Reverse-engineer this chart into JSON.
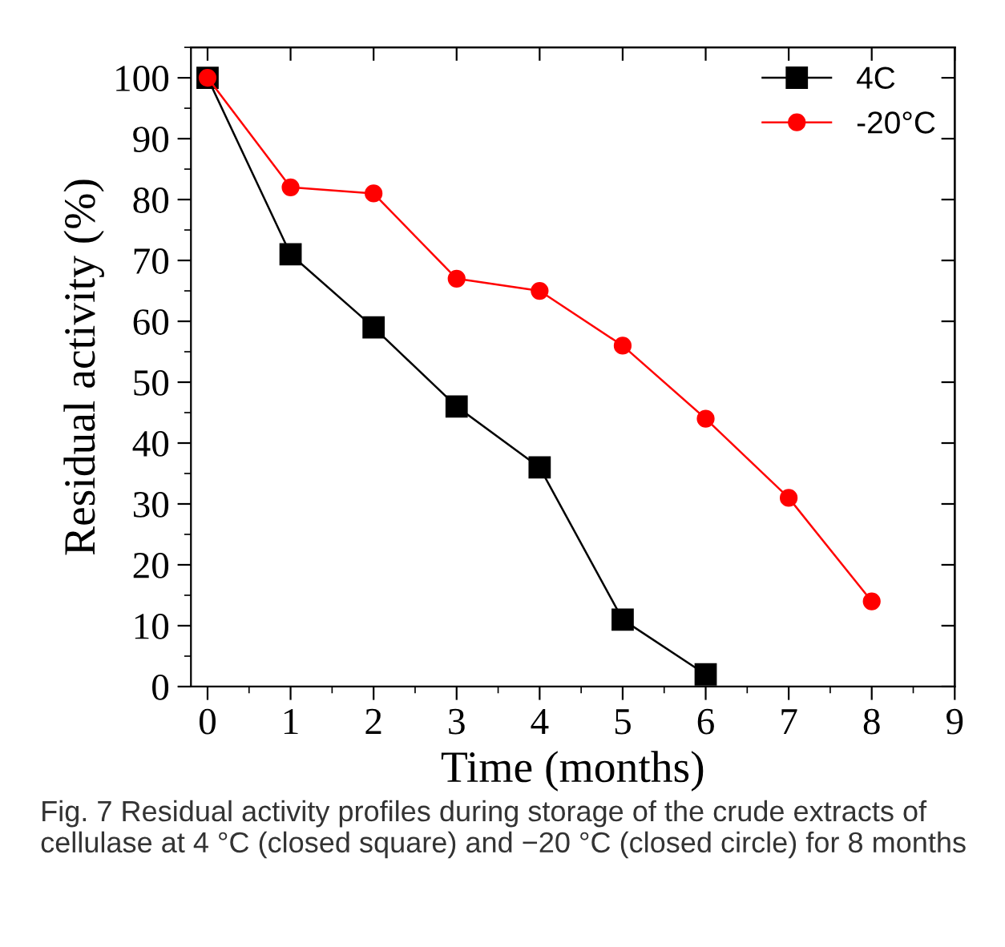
{
  "chart_data": {
    "type": "line",
    "xlabel": "Time (months)",
    "ylabel": "Residual activity (%)",
    "x": [
      0,
      1,
      2,
      3,
      4,
      5,
      6,
      7,
      8
    ],
    "series": [
      {
        "name": "4C",
        "color": "#000000",
        "marker": "square",
        "values": [
          100,
          71,
          59,
          46,
          36,
          11,
          2,
          null,
          null
        ]
      },
      {
        "name": "-20°C",
        "color": "#ff0000",
        "marker": "circle",
        "values": [
          100,
          82,
          81,
          67,
          65,
          56,
          44,
          31,
          14
        ]
      }
    ],
    "xlim": [
      -0.2,
      9
    ],
    "xticks": [
      0,
      1,
      2,
      3,
      4,
      5,
      6,
      7,
      8,
      9
    ],
    "ylim": [
      0,
      105
    ],
    "yticks": [
      0,
      10,
      20,
      30,
      40,
      50,
      60,
      70,
      80,
      90,
      100
    ],
    "grid": false,
    "legend": "top right",
    "annotations": [
      "Fig. 7 Residual activity profiles during storage of the crude extracts of cellulase at 4 °C (closed square) and −20 °C (closed circle) for 8 months"
    ]
  }
}
